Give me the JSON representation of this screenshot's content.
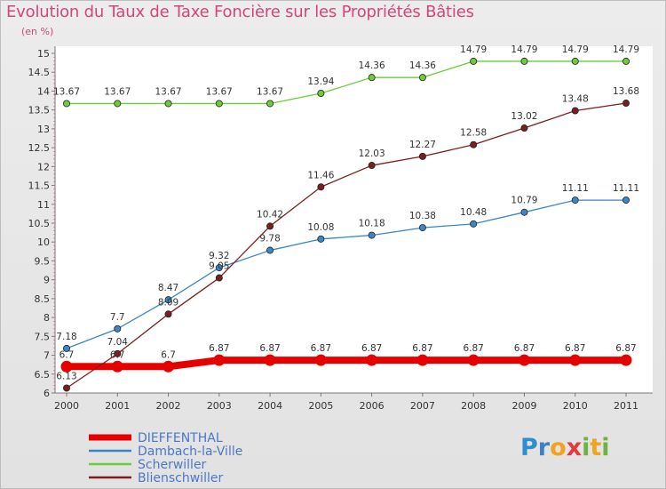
{
  "chart_data": {
    "type": "line",
    "title": "Evolution du Taux de Taxe Foncière sur les Propriétés Bâties",
    "subtitle": "(en %)",
    "x": [
      "2000",
      "2001",
      "2002",
      "2003",
      "2004",
      "2005",
      "2006",
      "2007",
      "2008",
      "2009",
      "2010",
      "2011"
    ],
    "ylim": [
      6,
      15
    ],
    "yticks": [
      "6",
      "6.5",
      "7",
      "7.5",
      "8",
      "8.5",
      "9",
      "9.5",
      "10",
      "10.5",
      "11",
      "11.5",
      "12",
      "12.5",
      "13",
      "13.5",
      "14",
      "14.5",
      "15"
    ],
    "grid": false,
    "legend_position": "bottom-left",
    "series": [
      {
        "name": "DIEFFENTHAL",
        "color": "#e60000",
        "values": [
          6.7,
          6.7,
          6.7,
          6.87,
          6.87,
          6.87,
          6.87,
          6.87,
          6.87,
          6.87,
          6.87,
          6.87
        ],
        "labels": [
          "6.7",
          "6.7",
          "6.7",
          "6.87",
          "6.87",
          "6.87",
          "6.87",
          "6.87",
          "6.87",
          "6.87",
          "6.87",
          "6.87"
        ]
      },
      {
        "name": "Dambach-la-Ville",
        "color": "#3a87c8",
        "values": [
          7.18,
          7.7,
          8.47,
          9.32,
          9.78,
          10.08,
          10.18,
          10.38,
          10.48,
          10.79,
          11.11,
          11.11
        ],
        "labels": [
          "7.18",
          "7.7",
          "8.47",
          "9.32",
          "9.78",
          "10.08",
          "10.18",
          "10.38",
          "10.48",
          "10.79",
          "11.11",
          "11.11"
        ]
      },
      {
        "name": "Scherwiller",
        "color": "#6ccc3a",
        "values": [
          13.67,
          13.67,
          13.67,
          13.67,
          13.67,
          13.94,
          14.36,
          14.36,
          14.79,
          14.79,
          14.79,
          14.79
        ],
        "labels": [
          "13.67",
          "13.67",
          "13.67",
          "13.67",
          "13.67",
          "13.94",
          "14.36",
          "14.36",
          "14.79",
          "14.79",
          "14.79",
          "14.79"
        ]
      },
      {
        "name": "Blienschwiller",
        "color": "#7b1e1e",
        "values": [
          6.13,
          7.04,
          8.09,
          9.05,
          10.42,
          11.46,
          12.03,
          12.27,
          12.58,
          13.02,
          13.48,
          13.68
        ],
        "labels": [
          "6.13",
          "7.04",
          "8.09",
          "9.05",
          "10.42",
          "11.46",
          "12.03",
          "12.27",
          "12.58",
          "13.02",
          "13.48",
          "13.68"
        ]
      }
    ]
  },
  "logo": {
    "letters": [
      "P",
      "r",
      "o",
      "x",
      "i",
      "t",
      "i"
    ],
    "colors": [
      "#2e8ece",
      "#3e7fc6",
      "#f2a21e",
      "#e2393e",
      "#6cb33f",
      "#f2a21e",
      "#6cb33f"
    ]
  }
}
